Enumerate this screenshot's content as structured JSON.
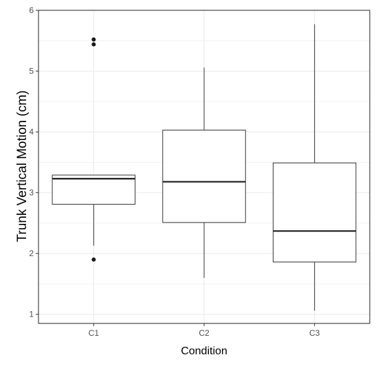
{
  "chart_data": {
    "type": "box",
    "xlabel": "Condition",
    "ylabel": "Trunk Vertical Motion (cm)",
    "ylim": [
      0.85,
      6.0
    ],
    "yticks": [
      1,
      2,
      3,
      4,
      5,
      6
    ],
    "grid": true,
    "categories": [
      "C1",
      "C2",
      "C3"
    ],
    "boxes": [
      {
        "category": "C1",
        "whisker_low": 2.13,
        "q1": 2.81,
        "median": 3.23,
        "q3": 3.29,
        "whisker_high": 3.29,
        "outliers": [
          1.9,
          5.44,
          5.52
        ]
      },
      {
        "category": "C2",
        "whisker_low": 1.6,
        "q1": 2.51,
        "median": 3.18,
        "q3": 4.03,
        "whisker_high": 5.06,
        "outliers": []
      },
      {
        "category": "C3",
        "whisker_low": 1.06,
        "q1": 1.86,
        "median": 2.37,
        "q3": 3.49,
        "whisker_high": 5.77,
        "outliers": []
      }
    ]
  },
  "colors": {
    "box_stroke": "#333333",
    "median": "#1a1a1a",
    "grid": "#ebebeb",
    "panel_border": "#333333",
    "point": "#1a1a1a",
    "tick_text": "#4d4d4d"
  }
}
